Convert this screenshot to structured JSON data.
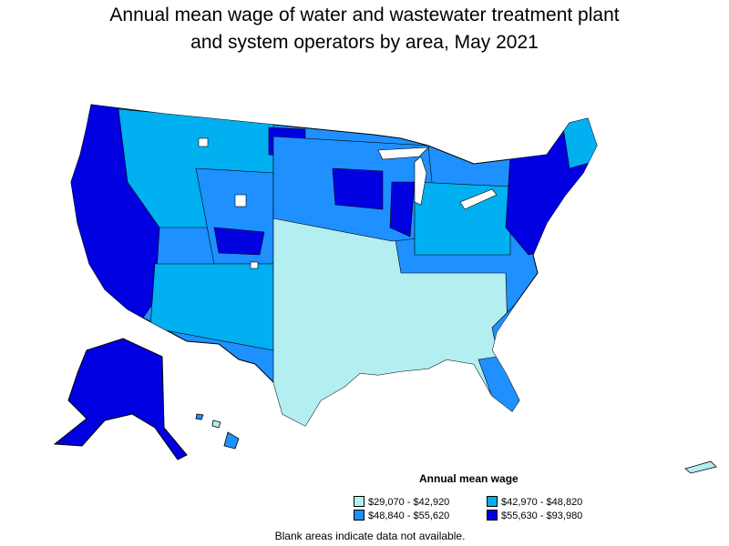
{
  "title": {
    "line1": "Annual mean wage of water and wastewater treatment plant",
    "line2": "and system operators by area, May 2021"
  },
  "legend": {
    "title": "Annual mean wage",
    "items": [
      {
        "label": "$29,070 - $42,920",
        "color": "#b3eef0"
      },
      {
        "label": "$42,970 - $48,820",
        "color": "#00b0f0"
      },
      {
        "label": "$48,840 - $55,620",
        "color": "#1e90ff"
      },
      {
        "label": "$55,630 - $93,980",
        "color": "#0000e0"
      }
    ]
  },
  "footnote": "Blank areas indicate data not available."
}
